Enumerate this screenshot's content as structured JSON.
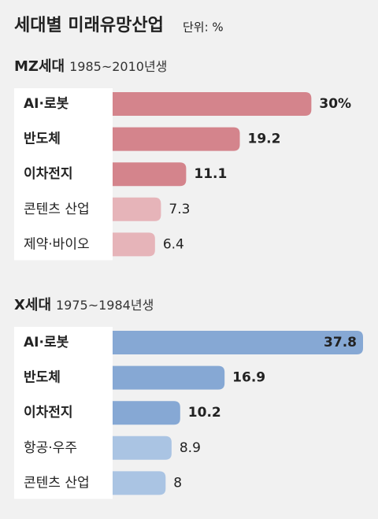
{
  "header": {
    "title": "세대별 미래유망산업",
    "unit": "단위: %"
  },
  "chart_data": [
    {
      "type": "hbar",
      "title": "MZ세대",
      "subtitle": "1985~2010년생",
      "categories": [
        "AI·로봇",
        "반도체",
        "이차전지",
        "콘텐츠 산업",
        "제약·바이오"
      ],
      "values": [
        30,
        19.2,
        11.1,
        7.3,
        6.4
      ],
      "value_labels": [
        "30%",
        "19.2",
        "11.1",
        "7.3",
        "6.4"
      ],
      "colors": [
        "#d4848c",
        "#d4848c",
        "#d4848c",
        "#e6b4b9",
        "#e6b4b9"
      ]
    },
    {
      "type": "hbar",
      "title": "X세대",
      "subtitle": "1975~1984년생",
      "categories": [
        "AI·로봇",
        "반도체",
        "이차전지",
        "항공·우주",
        "콘텐츠 산업"
      ],
      "values": [
        37.8,
        16.9,
        10.2,
        8.9,
        8
      ],
      "colors": [
        "#86a8d4",
        "#86a8d4",
        "#86a8d4",
        "#aac4e3",
        "#aac4e3"
      ]
    }
  ]
}
